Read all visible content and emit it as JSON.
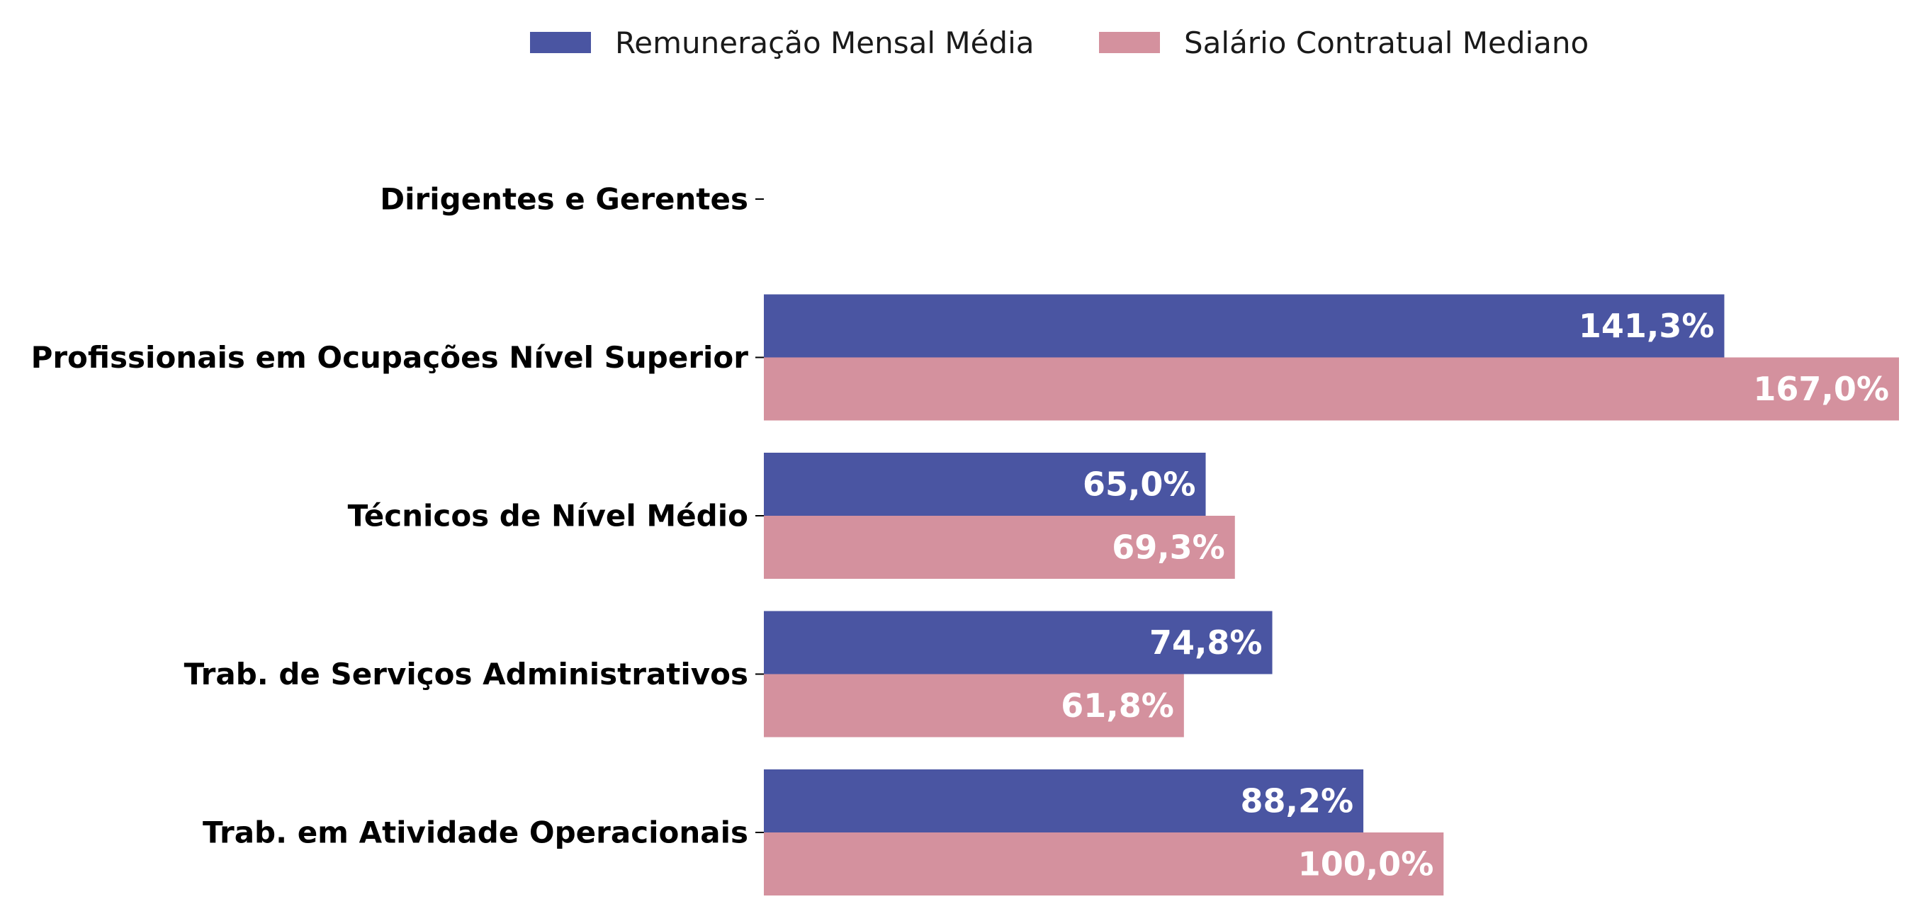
{
  "chart_data": {
    "type": "bar",
    "orientation": "horizontal",
    "categories": [
      "Dirigentes e Gerentes",
      "Profissionais em Ocupações Nível Superior",
      "Técnicos de Nível Médio",
      "Trab. de Serviços Administrativos",
      "Trab. em Atividade Operacionais"
    ],
    "series": [
      {
        "name": "Remuneração Mensal Média",
        "color": "#4a55a2",
        "values": [
          null,
          141.3,
          65.0,
          74.8,
          88.2
        ],
        "labels": [
          "",
          "141,3%",
          "65,0%",
          "74,8%",
          "88,2%"
        ]
      },
      {
        "name": "Salário Contratual Mediano",
        "color": "#d4919e",
        "values": [
          null,
          167.0,
          69.3,
          61.8,
          100.0
        ],
        "labels": [
          "",
          "167,0%",
          "69,3%",
          "61,8%",
          "100,0%"
        ]
      }
    ],
    "xlim": [
      0,
      167
    ],
    "grid": false,
    "legend_position": "top-center"
  }
}
